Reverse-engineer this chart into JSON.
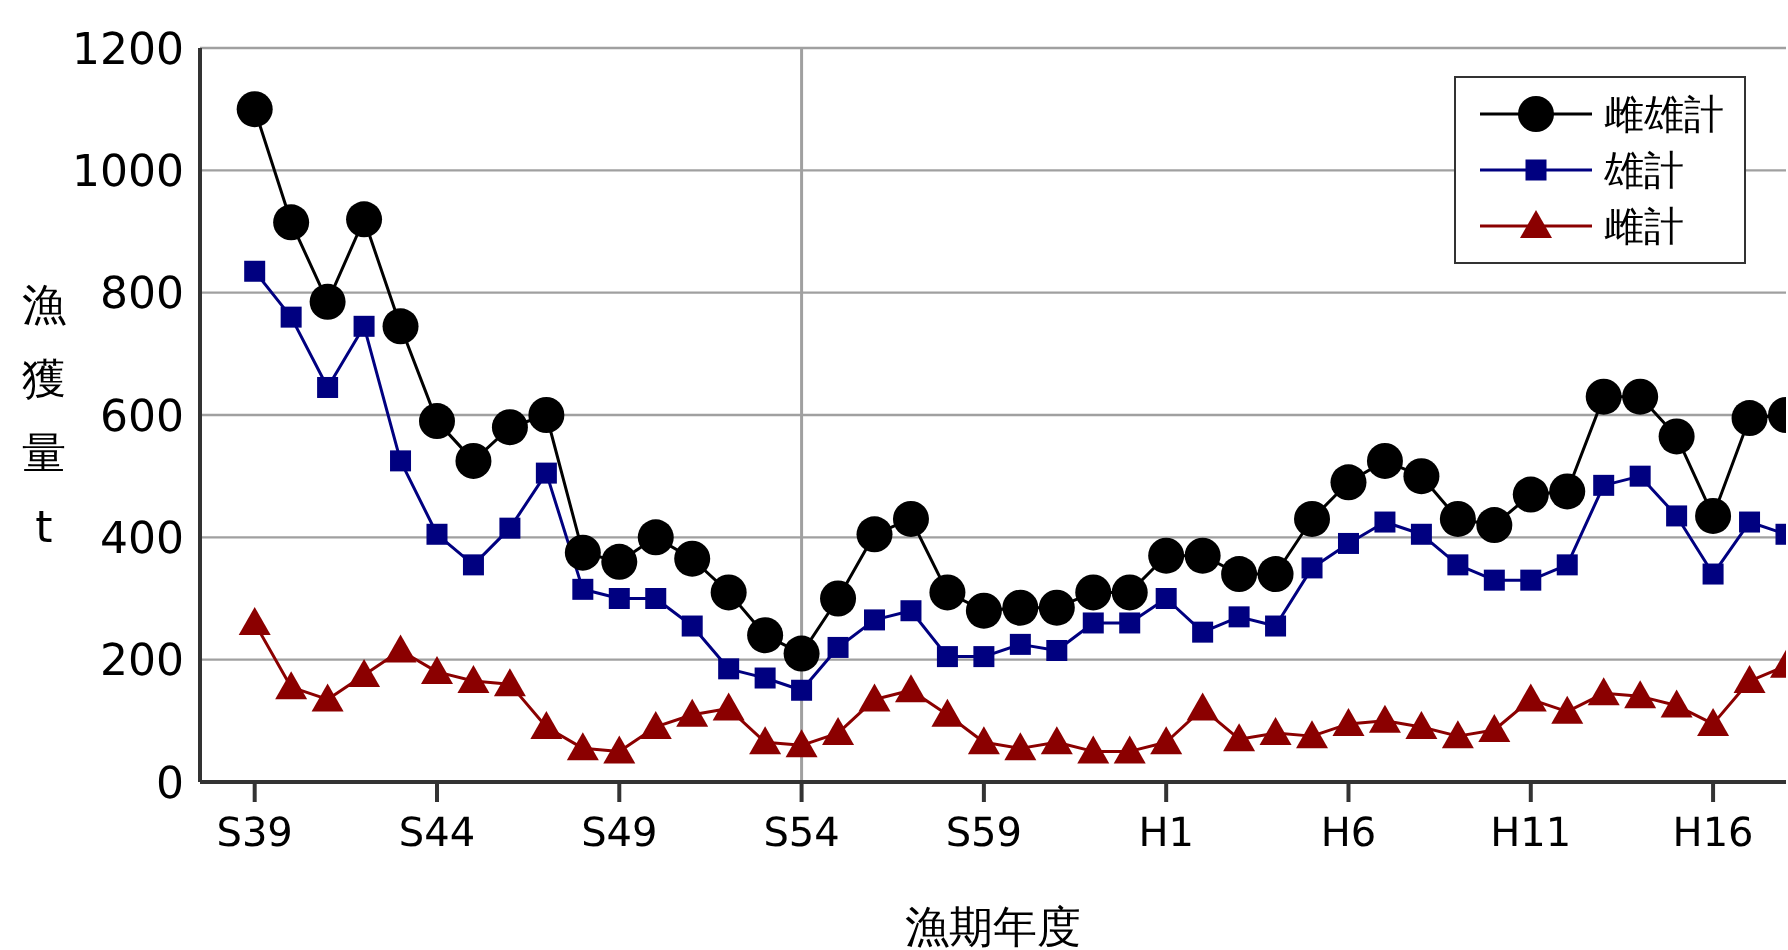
{
  "chart_data": {
    "type": "line",
    "xlabel": "漁期年度",
    "ylabel": "漁獲量 t",
    "categories": [
      "S39",
      null,
      null,
      null,
      null,
      "S44",
      null,
      null,
      null,
      null,
      "S49",
      null,
      null,
      null,
      null,
      "S54",
      null,
      null,
      null,
      null,
      "S59",
      null,
      null,
      null,
      null,
      "H1",
      null,
      null,
      null,
      null,
      "H6",
      null,
      null,
      null,
      null,
      "H11",
      null,
      null,
      null,
      null,
      "H16",
      null,
      null
    ],
    "series": [
      {
        "name": "雌雄計",
        "color": "#000000",
        "marker": "circle",
        "values": [
          1100,
          915,
          785,
          920,
          745,
          590,
          525,
          580,
          600,
          375,
          360,
          400,
          365,
          310,
          240,
          210,
          300,
          405,
          430,
          310,
          280,
          285,
          285,
          310,
          310,
          370,
          370,
          340,
          340,
          430,
          490,
          525,
          500,
          430,
          420,
          470,
          475,
          630,
          630,
          565,
          435,
          595,
          600
        ]
      },
      {
        "name": "雄計",
        "color": "#000080",
        "marker": "square",
        "values": [
          835,
          760,
          645,
          745,
          525,
          405,
          355,
          415,
          505,
          315,
          300,
          300,
          255,
          185,
          170,
          150,
          220,
          265,
          280,
          205,
          205,
          225,
          215,
          260,
          260,
          300,
          245,
          270,
          255,
          350,
          390,
          425,
          405,
          355,
          330,
          330,
          355,
          485,
          500,
          435,
          340,
          425,
          405
        ]
      },
      {
        "name": "雌計",
        "color": "#8b0000",
        "marker": "triangle",
        "values": [
          260,
          155,
          135,
          175,
          215,
          180,
          165,
          160,
          90,
          55,
          50,
          90,
          110,
          120,
          65,
          60,
          80,
          135,
          150,
          110,
          65,
          55,
          65,
          50,
          50,
          65,
          120,
          70,
          80,
          75,
          95,
          100,
          90,
          75,
          85,
          135,
          115,
          145,
          140,
          125,
          95,
          165,
          190
        ]
      }
    ],
    "ylim": [
      0,
      1200
    ],
    "yticks": [
      0,
      200,
      400,
      600,
      800,
      1000,
      1200
    ],
    "grid": "y",
    "legend": "top right",
    "ref_lines": [
      {
        "axis": "x",
        "value": "S54",
        "color": "#a0a0a0"
      }
    ]
  }
}
